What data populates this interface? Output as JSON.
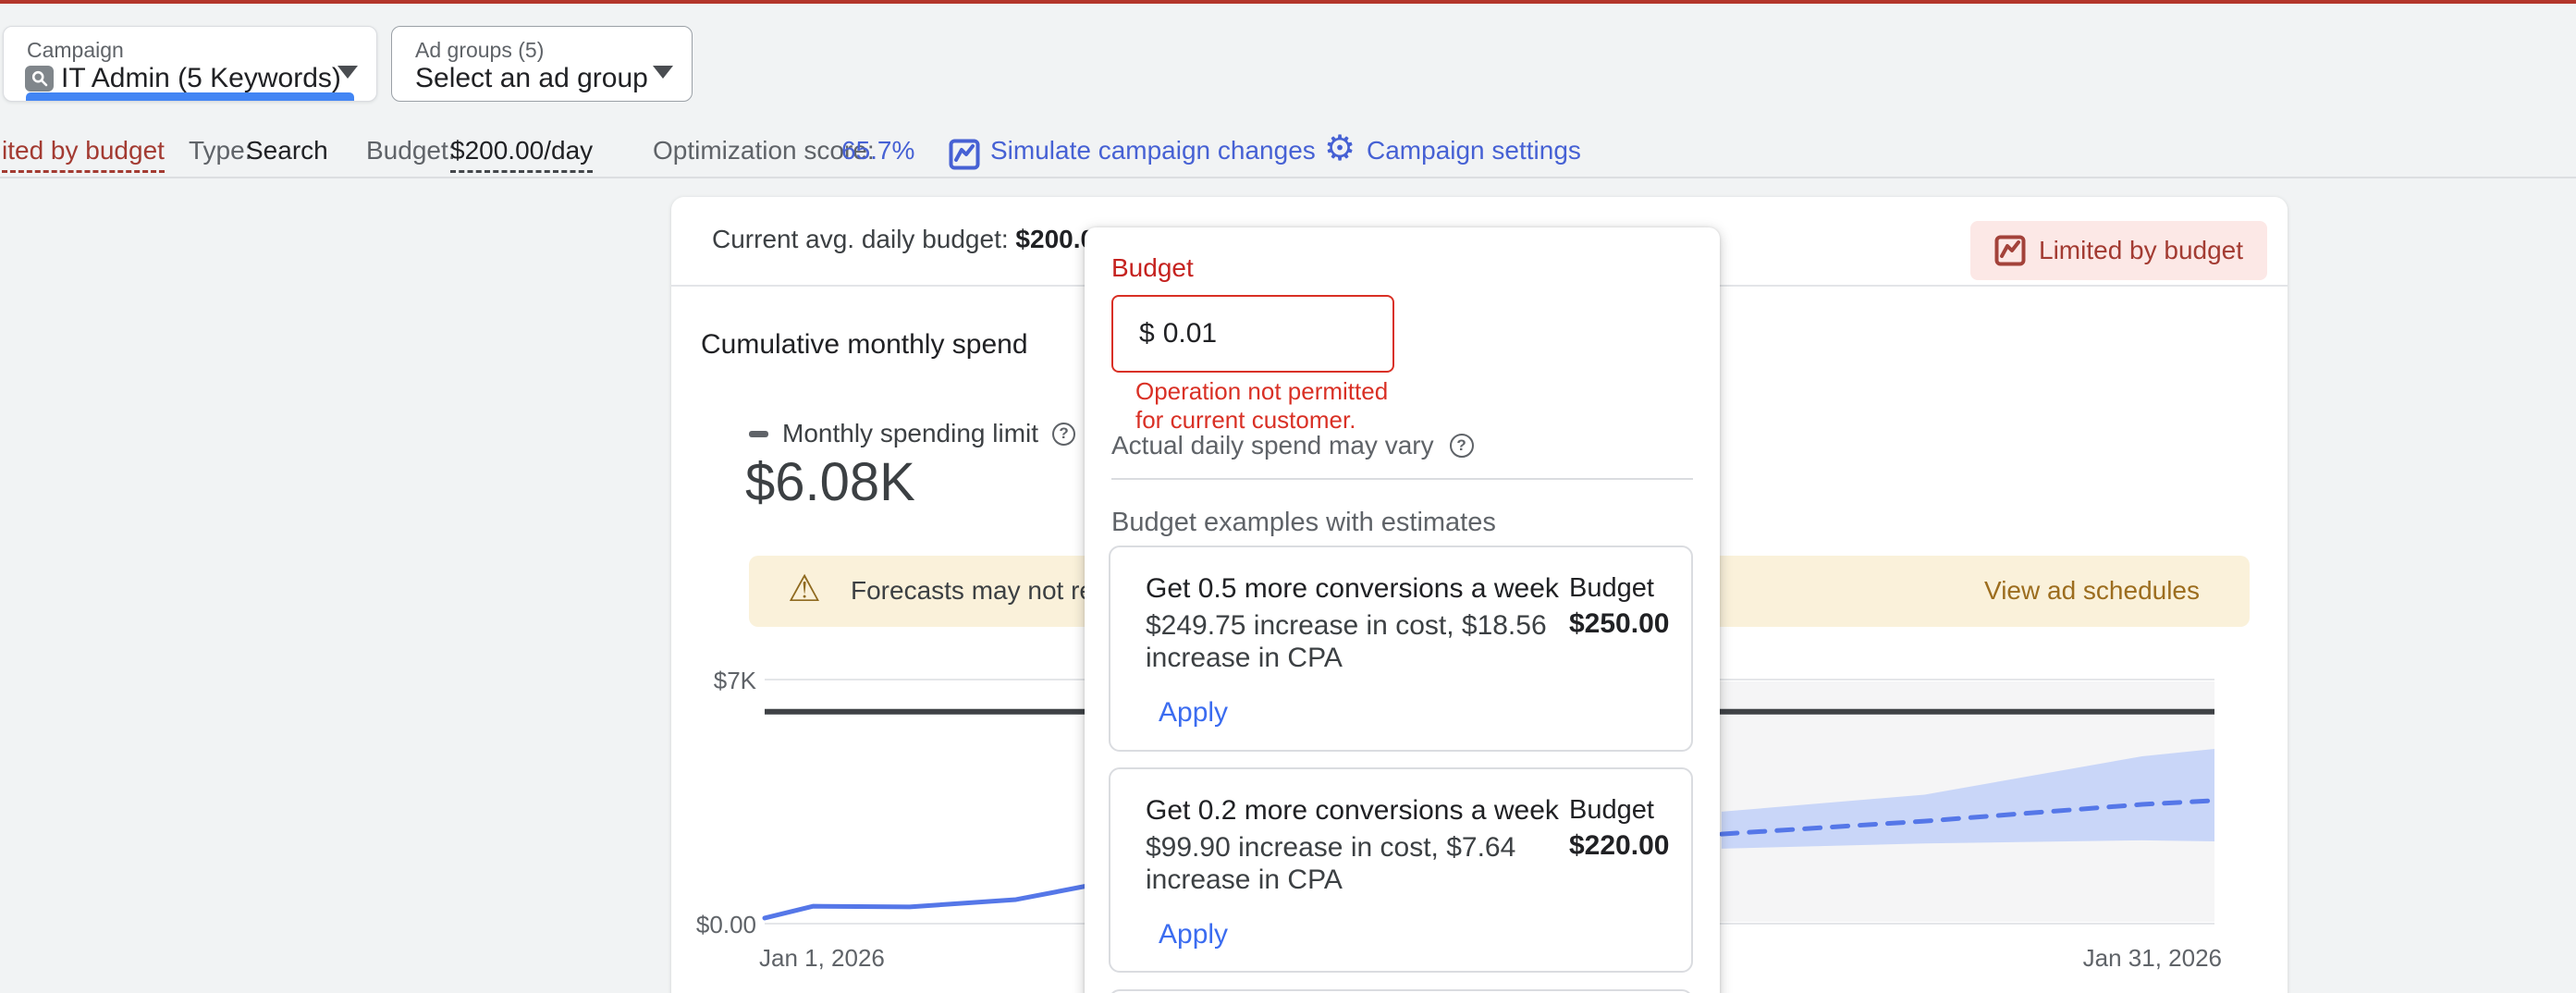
{
  "top_bar": {
    "campaign_selector": {
      "label": "Campaign",
      "value": "IT Admin (5 Keywords)"
    },
    "ad_group_selector": {
      "label": "Ad groups (5)",
      "value": "Select an ad group"
    }
  },
  "info_bar": {
    "status_text": "ited by budget",
    "type_label": "Type:",
    "type_value": "Search",
    "budget_label": "Budget:",
    "budget_value": "$200.00/day",
    "optimization_label": "Optimization score:",
    "optimization_value": "65.7%",
    "simulate_link": "Simulate campaign changes",
    "settings_link": "Campaign settings"
  },
  "card": {
    "header_label": "Current avg. daily budget:",
    "header_value": "$200.00/day",
    "badge_label": "Limited by budget",
    "section_title": "Cumulative monthly spend",
    "legend_label": "Monthly spending limit",
    "limit_value": "$6.08K",
    "warning_text": "Forecasts may not refl",
    "warning_link": "View ad schedules"
  },
  "popup": {
    "title": "Budget",
    "input_prefix": "$",
    "input_value": "0.01",
    "error_line1": "Operation not permitted",
    "error_line2": "for current customer.",
    "note": "Actual daily spend may vary",
    "examples_title": "Budget examples with estimates",
    "examples": [
      {
        "title": "Get 0.5 more conversions a week",
        "desc_line1": "$249.75 increase in cost, $18.56",
        "desc_line2": "increase in CPA",
        "budget_label": "Budget",
        "budget_value": "$250.00",
        "apply_label": "Apply"
      },
      {
        "title": "Get 0.2 more conversions a week",
        "desc_line1": "$99.90 increase in cost, $7.64",
        "desc_line2": "increase in CPA",
        "budget_label": "Budget",
        "budget_value": "$220.00",
        "apply_label": "Apply"
      }
    ]
  },
  "chart_data": {
    "type": "line",
    "title": "Cumulative monthly spend",
    "x_axis": {
      "start_label": "Jan 1, 2026",
      "end_label": "Jan 31, 2026",
      "day_range": [
        1,
        31
      ]
    },
    "y_axis": {
      "max": 7000,
      "ticks": [
        {
          "label": "$0.00",
          "value": 0
        },
        {
          "label": "$7K",
          "value": 7000
        }
      ]
    },
    "grid": "horizontal",
    "forecast_region_start_day": 20,
    "series": [
      {
        "name": "Cumulative spend (actual)",
        "style": "solid",
        "points": [
          [
            1,
            160
          ],
          [
            2,
            500
          ],
          [
            4,
            480
          ],
          [
            6.2,
            690
          ],
          [
            7.7,
            1090
          ]
        ]
      },
      {
        "name": "Forecast range",
        "style": "band",
        "upper": [
          [
            20.8,
            3210
          ],
          [
            25,
            3700
          ],
          [
            29.5,
            4800
          ],
          [
            31,
            5010
          ]
        ],
        "lower": [
          [
            20.8,
            2150
          ],
          [
            25,
            2300
          ],
          [
            29.5,
            2390
          ],
          [
            31,
            2360
          ]
        ]
      },
      {
        "name": "Cumulative spend (forecast)",
        "style": "dashed",
        "points": [
          [
            20.8,
            2570
          ],
          [
            25,
            2940
          ],
          [
            29.5,
            3420
          ],
          [
            31,
            3530
          ]
        ]
      },
      {
        "name": "Monthly spending limit",
        "style": "reference-line",
        "value": 6080,
        "display_value": "$6.08K"
      }
    ]
  },
  "colors": {
    "top_strip": "#b3362b",
    "page_bg": "#f1f3f4",
    "accent_blue": "#4661d4",
    "apply_blue": "#3b6cf0",
    "focus_blue": "#4285f4",
    "title_red": "#c5221f",
    "error_red": "#d93025",
    "status_red": "#a33b32",
    "badge_bg": "#fce8e6",
    "banner_bg": "#faf1da",
    "banner_link": "#9c6d1e",
    "warning_icon": "#8f6a1f",
    "line_blue": "#5577e8",
    "band_blue": "#c9d6f8",
    "limit_line": "#3f4246",
    "forecast_bg": "#f5f5f6"
  }
}
